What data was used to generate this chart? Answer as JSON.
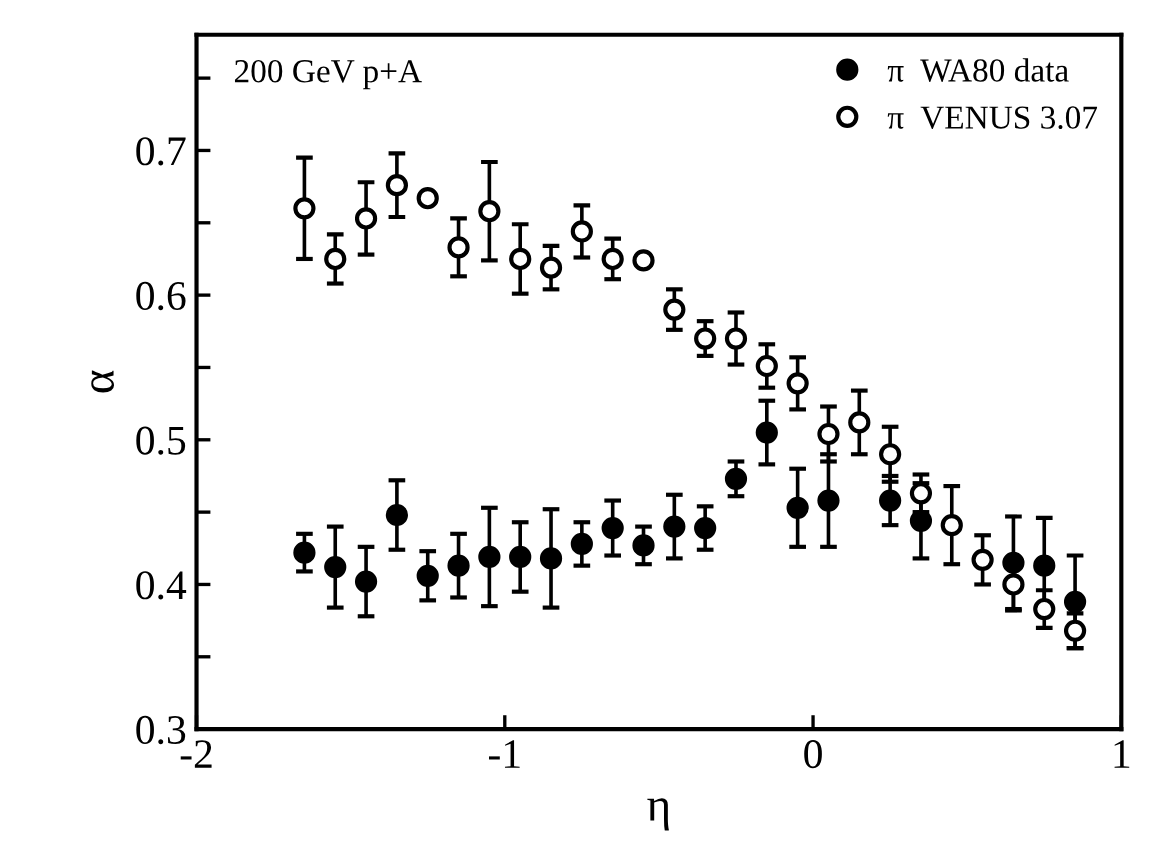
{
  "chart_data": {
    "type": "scatter",
    "xlabel": "η",
    "ylabel": "α",
    "annotations": [
      "200 GeV p+A"
    ],
    "x": [
      -1.65,
      -1.55,
      -1.45,
      -1.35,
      -1.25,
      -1.15,
      -1.05,
      -0.95,
      -0.85,
      -0.75,
      -0.65,
      -0.55,
      -0.45,
      -0.35,
      -0.25,
      -0.15,
      -0.05,
      0.05,
      0.15,
      0.25,
      0.35,
      0.45,
      0.55,
      0.65,
      0.75,
      0.85
    ],
    "series": [
      {
        "name": "π  WA80 data",
        "color": "#000000",
        "values": [
          0.422,
          0.412,
          0.402,
          0.448,
          0.406,
          0.413,
          0.419,
          0.419,
          0.418,
          0.428,
          0.439,
          0.427,
          0.44,
          0.439,
          0.473,
          0.505,
          0.453,
          0.458,
          null,
          0.458,
          0.444,
          null,
          null,
          0.415,
          0.413,
          0.388
        ],
        "errors": [
          0.013,
          0.028,
          0.024,
          0.024,
          0.017,
          0.022,
          0.034,
          0.024,
          0.034,
          0.015,
          0.019,
          0.013,
          0.022,
          0.015,
          0.012,
          0.022,
          0.027,
          0.032,
          null,
          0.017,
          0.026,
          null,
          null,
          0.032,
          0.033,
          0.032
        ]
      },
      {
        "name": "π  VENUS 3.07",
        "color": "#000000",
        "values": [
          0.66,
          0.625,
          0.653,
          0.676,
          0.667,
          0.633,
          0.658,
          0.625,
          0.619,
          0.644,
          0.625,
          0.624,
          0.59,
          0.57,
          0.57,
          0.551,
          0.539,
          0.504,
          0.512,
          0.49,
          0.463,
          0.441,
          0.417,
          0.4,
          0.383,
          0.368
        ],
        "errors": [
          0.035,
          0.017,
          0.025,
          0.022,
          null,
          0.02,
          0.034,
          0.024,
          0.015,
          0.018,
          0.014,
          null,
          0.014,
          0.012,
          0.018,
          0.015,
          0.018,
          0.019,
          0.022,
          0.019,
          0.013,
          0.027,
          0.017,
          0.018,
          0.013,
          0.012
        ]
      }
    ],
    "xlim": [
      -2,
      1
    ],
    "ylim": [
      0.3,
      0.78
    ],
    "xticks": [
      -2,
      -1,
      0,
      1
    ],
    "yticks": [
      0.3,
      {
        "value": 0.35,
        "label": null
      },
      0.4,
      {
        "value": 0.45,
        "label": null
      },
      0.5,
      {
        "value": 0.55,
        "label": null
      },
      0.6,
      {
        "value": 0.65,
        "label": null
      },
      0.7,
      {
        "value": 0.75,
        "label": null
      }
    ],
    "marker": "circle",
    "legend": "top right",
    "grid": false
  }
}
